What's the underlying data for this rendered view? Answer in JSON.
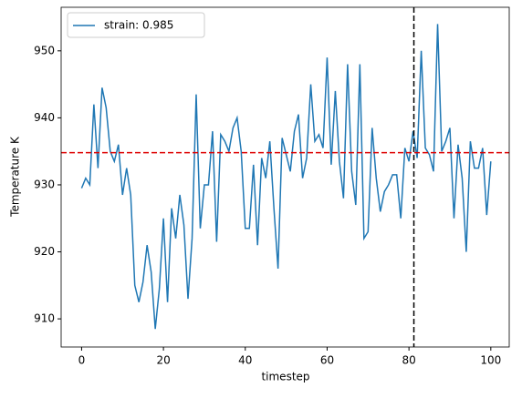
{
  "chart_data": {
    "type": "line",
    "x_label": "timestep",
    "y_label": "Temperature K",
    "x": [
      0,
      1,
      2,
      3,
      4,
      5,
      6,
      7,
      8,
      9,
      10,
      11,
      12,
      13,
      14,
      15,
      16,
      17,
      18,
      19,
      20,
      21,
      22,
      23,
      24,
      25,
      26,
      27,
      28,
      29,
      30,
      31,
      32,
      33,
      34,
      35,
      36,
      37,
      38,
      39,
      40,
      41,
      42,
      43,
      44,
      45,
      46,
      47,
      48,
      49,
      50,
      51,
      52,
      53,
      54,
      55,
      56,
      57,
      58,
      59,
      60,
      61,
      62,
      63,
      64,
      65,
      66,
      67,
      68,
      69,
      70,
      71,
      72,
      73,
      74,
      75,
      76,
      77,
      78,
      79,
      80,
      81,
      82,
      83,
      84,
      85,
      86,
      87,
      88,
      89,
      90,
      91,
      92,
      93,
      94,
      95,
      96,
      97,
      98,
      99,
      100
    ],
    "series": [
      {
        "name": "strain: 0.985",
        "color": "#1f77b4",
        "values": [
          929.5,
          931,
          930,
          942,
          932.5,
          944.5,
          941.5,
          935,
          933.5,
          936,
          928.5,
          932.5,
          928.5,
          915,
          912.5,
          915.5,
          921,
          917,
          908.5,
          914.5,
          925,
          912.5,
          926.5,
          922,
          928.5,
          924,
          913,
          922,
          943.5,
          923.5,
          930,
          930,
          938,
          921.5,
          937.5,
          936.5,
          935,
          938.5,
          940,
          935,
          923.5,
          923.5,
          933,
          921,
          934,
          931,
          936.5,
          926.5,
          917.5,
          937,
          934.5,
          932,
          938,
          940.5,
          931,
          934,
          945,
          936.5,
          937.5,
          935.5,
          949,
          933,
          944,
          933.5,
          928,
          948,
          932,
          927,
          948,
          922,
          923,
          938.5,
          931,
          926,
          929,
          930,
          931.5,
          931.5,
          925,
          935.5,
          933.5,
          938,
          934,
          950,
          935.5,
          934.5,
          932,
          954,
          935,
          936.5,
          938.5,
          925,
          936,
          931,
          920,
          936.5,
          932.5,
          932.5,
          935.5,
          925.5,
          933.5
        ]
      }
    ],
    "hline": {
      "value": 934.8,
      "color": "#dd0000"
    },
    "vline": {
      "value": 81.2,
      "color": "#000000"
    },
    "xlim": [
      -5,
      104.5
    ],
    "ylim": [
      905.8,
      956.5
    ],
    "xticks": [
      0,
      20,
      40,
      60,
      80,
      100
    ],
    "yticks": [
      910,
      920,
      930,
      940,
      950
    ],
    "legend": "upper left"
  }
}
